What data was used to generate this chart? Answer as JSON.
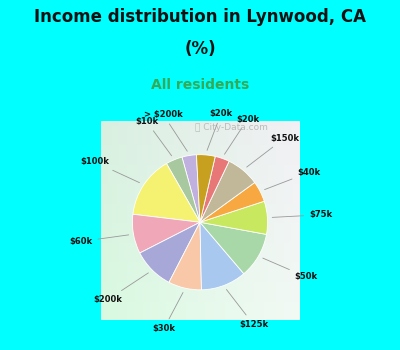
{
  "title_line1": "Income distribution in Lynwood, CA",
  "title_line2": "(%)",
  "subtitle": "All residents",
  "labels": [
    "> $200k",
    "$10k",
    "$100k",
    "$60k",
    "$200k",
    "$30k",
    "$125k",
    "$50k",
    "$75k",
    "$40k",
    "$150k",
    "$20k",
    "$20k"
  ],
  "sizes": [
    3.5,
    4.0,
    15.0,
    9.5,
    10.0,
    8.0,
    11.0,
    11.0,
    8.0,
    5.0,
    8.0,
    3.5,
    4.5
  ],
  "colors": [
    "#c0b0e0",
    "#a8c8a0",
    "#f4f270",
    "#f0a8b8",
    "#a8a8d8",
    "#f8c8a8",
    "#a8c8f0",
    "#a8d8a8",
    "#c8e860",
    "#f8a840",
    "#c0b898",
    "#e87878",
    "#c8a020"
  ],
  "start_angle": 93,
  "bg_color": "#00FFFF",
  "pie_bg_gradient_left": "#d4ede0",
  "pie_bg_gradient_right": "#e8f8f0",
  "title_color": "#111111",
  "subtitle_color": "#33aa55",
  "watermark_text": "ⓘ City-Data.com",
  "watermark_color": "#aaaaaa"
}
